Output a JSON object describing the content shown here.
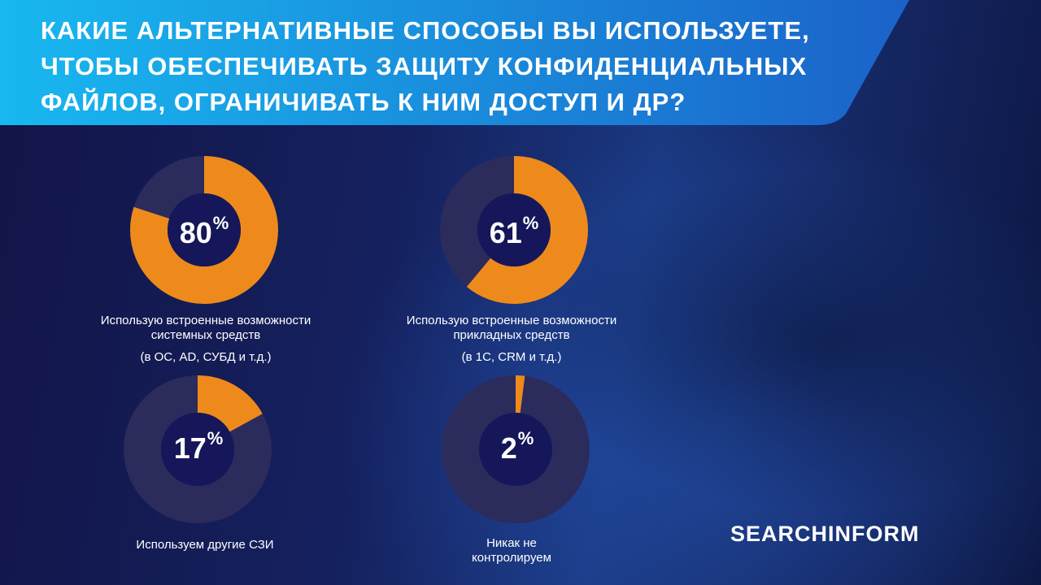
{
  "title": "Какие альтернативные способы вы используете, чтобы обеспечивать защиту конфиденциальных файлов, ограничивать к ним доступ и др?",
  "brand": "SEARCHINFORM",
  "colors": {
    "accent": "#ee8a1c",
    "track": "#2b2b5c",
    "hole": "#15175a",
    "banner_start": "#18b8f0",
    "banner_end": "#1b62c8"
  },
  "chart_data": [
    {
      "type": "pie",
      "values": [
        80,
        20
      ],
      "value_label": "80",
      "unit": "%",
      "label": "Использую встроенные возможности системных средств",
      "note": "(в ОС, AD, СУБД и т.д.)"
    },
    {
      "type": "pie",
      "values": [
        61,
        39
      ],
      "value_label": "61",
      "unit": "%",
      "label": "Использую встроенные возможности прикладных средств",
      "note": "(в 1С, CRM и т.д.)"
    },
    {
      "type": "pie",
      "values": [
        17,
        83
      ],
      "value_label": "17",
      "unit": "%",
      "label": "Используем другие СЗИ",
      "note": ""
    },
    {
      "type": "pie",
      "values": [
        2,
        98
      ],
      "value_label": "2",
      "unit": "%",
      "label": "Никак не контролируем",
      "note": ""
    }
  ]
}
